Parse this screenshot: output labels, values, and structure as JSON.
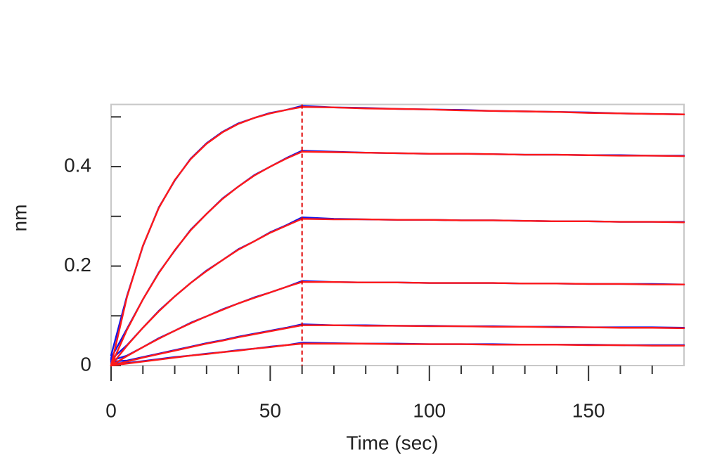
{
  "chart_data": {
    "type": "line",
    "x_label": "Time (sec)",
    "y_label": "nm",
    "x": [
      0,
      5,
      10,
      15,
      20,
      25,
      30,
      35,
      40,
      45,
      50,
      55,
      60,
      70,
      80,
      90,
      100,
      110,
      120,
      130,
      140,
      150,
      160,
      170,
      180
    ],
    "series": [
      {
        "color": "#1515e6",
        "values": [
          0.02,
          0.14,
          0.24,
          0.318,
          0.372,
          0.416,
          0.447,
          0.47,
          0.487,
          0.498,
          0.508,
          0.514,
          0.522,
          0.519,
          0.518,
          0.516,
          0.515,
          0.514,
          0.512,
          0.511,
          0.51,
          0.509,
          0.507,
          0.506,
          0.505
        ]
      },
      {
        "color": "#1515e6",
        "values": [
          0.015,
          0.074,
          0.133,
          0.187,
          0.231,
          0.273,
          0.305,
          0.336,
          0.36,
          0.383,
          0.4,
          0.417,
          0.432,
          0.43,
          0.428,
          0.427,
          0.426,
          0.426,
          0.425,
          0.424,
          0.424,
          0.423,
          0.423,
          0.422,
          0.422
        ]
      },
      {
        "color": "#1515e6",
        "values": [
          0.012,
          0.041,
          0.076,
          0.11,
          0.139,
          0.166,
          0.191,
          0.212,
          0.234,
          0.25,
          0.268,
          0.282,
          0.298,
          0.295,
          0.294,
          0.293,
          0.293,
          0.292,
          0.292,
          0.291,
          0.29,
          0.29,
          0.289,
          0.289,
          0.289
        ]
      },
      {
        "color": "#1515e6",
        "values": [
          0.01,
          0.02,
          0.037,
          0.055,
          0.07,
          0.086,
          0.099,
          0.113,
          0.125,
          0.137,
          0.147,
          0.158,
          0.17,
          0.168,
          0.167,
          0.167,
          0.166,
          0.166,
          0.166,
          0.165,
          0.165,
          0.164,
          0.164,
          0.164,
          0.163
        ]
      },
      {
        "color": "#1515e6",
        "values": [
          0.008,
          0.01,
          0.017,
          0.024,
          0.031,
          0.038,
          0.045,
          0.051,
          0.058,
          0.064,
          0.07,
          0.076,
          0.083,
          0.081,
          0.081,
          0.08,
          0.08,
          0.079,
          0.079,
          0.078,
          0.078,
          0.077,
          0.077,
          0.077,
          0.076
        ]
      },
      {
        "color": "#1515e6",
        "values": [
          0.005,
          0.005,
          0.009,
          0.013,
          0.017,
          0.02,
          0.024,
          0.027,
          0.031,
          0.034,
          0.038,
          0.041,
          0.046,
          0.045,
          0.044,
          0.044,
          0.043,
          0.043,
          0.043,
          0.042,
          0.042,
          0.042,
          0.041,
          0.041,
          0.041
        ]
      },
      {
        "color": "#ff1a1a",
        "values": [
          0,
          0.138,
          0.241,
          0.317,
          0.373,
          0.415,
          0.446,
          0.469,
          0.486,
          0.498,
          0.507,
          0.514,
          0.52,
          0.519,
          0.517,
          0.516,
          0.515,
          0.513,
          0.512,
          0.511,
          0.51,
          0.508,
          0.507,
          0.506,
          0.505
        ]
      },
      {
        "color": "#ff1a1a",
        "values": [
          0,
          0.072,
          0.133,
          0.186,
          0.232,
          0.272,
          0.305,
          0.335,
          0.36,
          0.382,
          0.4,
          0.416,
          0.43,
          0.429,
          0.428,
          0.427,
          0.426,
          0.426,
          0.425,
          0.424,
          0.424,
          0.423,
          0.422,
          0.422,
          0.421
        ]
      },
      {
        "color": "#ff1a1a",
        "values": [
          0,
          0.04,
          0.076,
          0.109,
          0.139,
          0.166,
          0.19,
          0.212,
          0.233,
          0.25,
          0.267,
          0.281,
          0.295,
          0.294,
          0.294,
          0.293,
          0.293,
          0.292,
          0.292,
          0.291,
          0.29,
          0.29,
          0.289,
          0.289,
          0.288
        ]
      },
      {
        "color": "#ff1a1a",
        "values": [
          0,
          0.019,
          0.037,
          0.054,
          0.07,
          0.085,
          0.099,
          0.112,
          0.125,
          0.136,
          0.147,
          0.158,
          0.168,
          0.168,
          0.167,
          0.167,
          0.166,
          0.166,
          0.166,
          0.165,
          0.165,
          0.164,
          0.164,
          0.163,
          0.163
        ]
      },
      {
        "color": "#ff1a1a",
        "values": [
          0,
          0.008,
          0.016,
          0.023,
          0.03,
          0.037,
          0.044,
          0.05,
          0.057,
          0.063,
          0.069,
          0.075,
          0.081,
          0.081,
          0.08,
          0.08,
          0.079,
          0.079,
          0.078,
          0.078,
          0.077,
          0.077,
          0.076,
          0.076,
          0.075
        ]
      },
      {
        "color": "#ff1a1a",
        "values": [
          0,
          0.004,
          0.008,
          0.012,
          0.016,
          0.02,
          0.023,
          0.027,
          0.03,
          0.034,
          0.037,
          0.041,
          0.044,
          0.044,
          0.044,
          0.043,
          0.043,
          0.043,
          0.042,
          0.042,
          0.042,
          0.041,
          0.041,
          0.04,
          0.04
        ]
      }
    ],
    "xlim": [
      0,
      180
    ],
    "ylim": [
      0,
      0.525
    ],
    "xticks": [
      0,
      50,
      100,
      150
    ],
    "xminorticks": [
      10,
      20,
      30,
      40,
      60,
      70,
      80,
      90,
      110,
      120,
      130,
      140,
      160,
      170
    ],
    "yticks": [
      0,
      0.2,
      0.4
    ],
    "yminorticks": [
      0.1,
      0.3,
      0.5
    ],
    "vline": {
      "x": 60,
      "color": "#e00000",
      "dashed": true
    }
  }
}
